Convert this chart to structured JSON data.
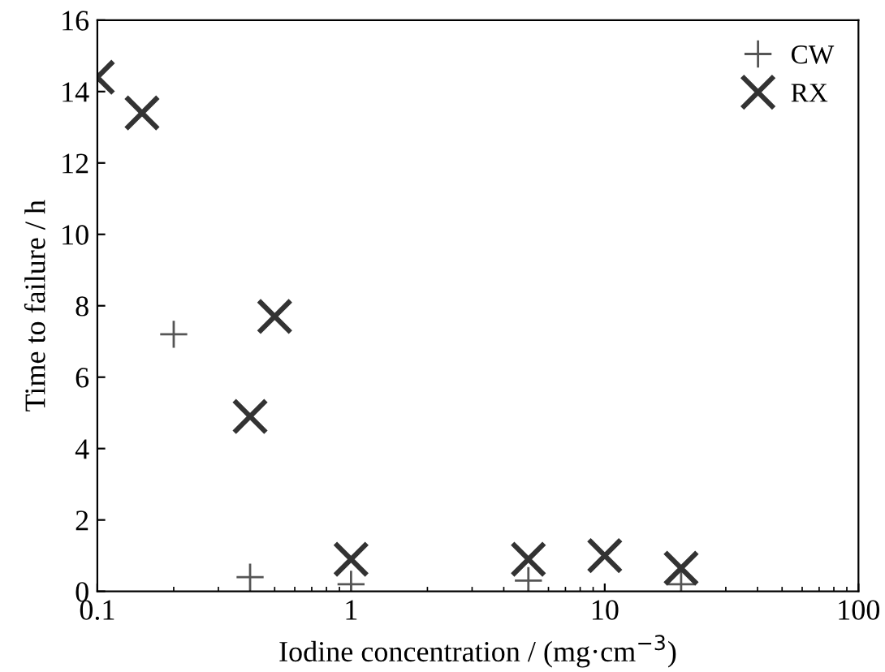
{
  "chart_data": {
    "type": "scatter",
    "xlabel": "Iodine concentration / (mg·cm$^{−3}$)",
    "ylabel": "Time to failure / h",
    "log": "x",
    "xlim": [
      0.1,
      100
    ],
    "xticks": [
      0.1,
      1,
      10,
      100
    ],
    "ylim": [
      0,
      16
    ],
    "yticks": [
      0,
      2,
      4,
      6,
      8,
      10,
      12,
      14,
      16
    ],
    "legend": "top right",
    "grid": false,
    "series": [
      {
        "name": "CW",
        "color": "#555555",
        "marker": "plus",
        "x": [
          0.2,
          0.4,
          1,
          5,
          20
        ],
        "values": [
          7.2,
          0.4,
          0.2,
          0.3,
          0.2
        ]
      },
      {
        "name": "RX",
        "color": "#333333",
        "marker": "cross",
        "x": [
          0.1,
          0.15,
          0.4,
          0.5,
          1,
          5,
          10,
          20
        ],
        "values": [
          14.4,
          13.4,
          4.9,
          7.7,
          0.9,
          0.9,
          1.0,
          0.65
        ]
      }
    ]
  }
}
